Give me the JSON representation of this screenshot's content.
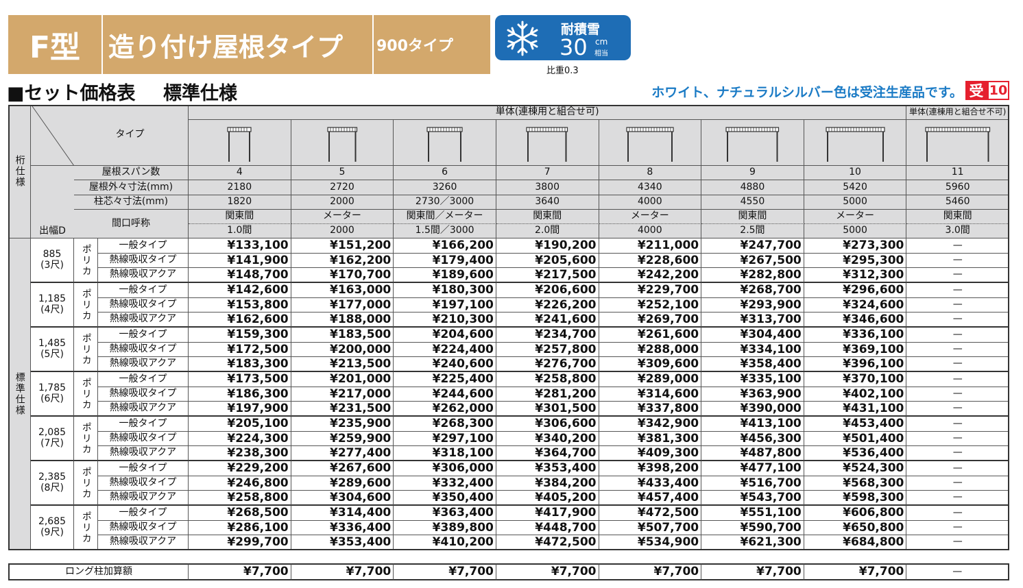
{
  "header": {
    "badge": "F型",
    "title": "造り付け屋根タイプ",
    "subtype": "900タイプ",
    "snow": {
      "label": "耐積雪",
      "value": "30",
      "unit": "cm",
      "unit_note": "相当",
      "note": "比重0.3"
    }
  },
  "section": {
    "title": "■セット価格表",
    "subtitle": "標準仕様",
    "notice": "ホワイト、ナチュラルシルバー色は受注生産品です。",
    "order_mark": "受",
    "order_days": "10"
  },
  "table": {
    "side_top": "桁仕様",
    "side_bottom": "標準仕様",
    "group_a": "単体(連棟用と組合せ可)",
    "group_b": "単体(連棟用と組合せ不可)",
    "type_label": "タイプ",
    "depth_label": "出幅D",
    "row_labels": [
      "屋根スパン数",
      "屋根外々寸法(mm)",
      "柱芯々寸法(mm)",
      "間口呼称"
    ],
    "columns": [
      {
        "span": "4",
        "outer": "2180",
        "pitch": "1820",
        "name1": "関東間",
        "name2": "1.0間"
      },
      {
        "span": "5",
        "outer": "2720",
        "pitch": "2000",
        "name1": "メーター",
        "name2": "2000"
      },
      {
        "span": "6",
        "outer": "3260",
        "pitch": "2730／3000",
        "name1": "関東間／メーター",
        "name2": "1.5間／3000"
      },
      {
        "span": "7",
        "outer": "3800",
        "pitch": "3640",
        "name1": "関東間",
        "name2": "2.0間"
      },
      {
        "span": "8",
        "outer": "4340",
        "pitch": "4000",
        "name1": "メーター",
        "name2": "4000"
      },
      {
        "span": "9",
        "outer": "4880",
        "pitch": "4550",
        "name1": "関東間",
        "name2": "2.5間"
      },
      {
        "span": "10",
        "outer": "5420",
        "pitch": "5000",
        "name1": "メーター",
        "name2": "5000"
      },
      {
        "span": "11",
        "outer": "5960",
        "pitch": "5460",
        "name1": "関東間",
        "name2": "3.0間"
      }
    ],
    "depths": [
      {
        "width": "885",
        "shaku": "(3尺)",
        "material": "ポリカ",
        "rows": [
          {
            "type": "一般タイプ",
            "prices": [
              "¥133,100",
              "¥151,200",
              "¥166,200",
              "¥190,200",
              "¥211,000",
              "¥247,700",
              "¥273,300",
              "—"
            ]
          },
          {
            "type": "熱線吸収タイプ",
            "prices": [
              "¥141,900",
              "¥162,200",
              "¥179,400",
              "¥205,600",
              "¥228,600",
              "¥267,500",
              "¥295,300",
              "—"
            ]
          },
          {
            "type": "熱線吸収アクア",
            "prices": [
              "¥148,700",
              "¥170,700",
              "¥189,600",
              "¥217,500",
              "¥242,200",
              "¥282,800",
              "¥312,300",
              "—"
            ]
          }
        ]
      },
      {
        "width": "1,185",
        "shaku": "(4尺)",
        "material": "ポリカ",
        "rows": [
          {
            "type": "一般タイプ",
            "prices": [
              "¥142,600",
              "¥163,000",
              "¥180,300",
              "¥206,600",
              "¥229,700",
              "¥268,700",
              "¥296,600",
              "—"
            ]
          },
          {
            "type": "熱線吸収タイプ",
            "prices": [
              "¥153,800",
              "¥177,000",
              "¥197,100",
              "¥226,200",
              "¥252,100",
              "¥293,900",
              "¥324,600",
              "—"
            ]
          },
          {
            "type": "熱線吸収アクア",
            "prices": [
              "¥162,600",
              "¥188,000",
              "¥210,300",
              "¥241,600",
              "¥269,700",
              "¥313,700",
              "¥346,600",
              "—"
            ]
          }
        ]
      },
      {
        "width": "1,485",
        "shaku": "(5尺)",
        "material": "ポリカ",
        "rows": [
          {
            "type": "一般タイプ",
            "prices": [
              "¥159,300",
              "¥183,500",
              "¥204,600",
              "¥234,700",
              "¥261,600",
              "¥304,400",
              "¥336,100",
              "—"
            ]
          },
          {
            "type": "熱線吸収タイプ",
            "prices": [
              "¥172,500",
              "¥200,000",
              "¥224,400",
              "¥257,800",
              "¥288,000",
              "¥334,100",
              "¥369,100",
              "—"
            ]
          },
          {
            "type": "熱線吸収アクア",
            "prices": [
              "¥183,300",
              "¥213,500",
              "¥240,600",
              "¥276,700",
              "¥309,600",
              "¥358,400",
              "¥396,100",
              "—"
            ]
          }
        ]
      },
      {
        "width": "1,785",
        "shaku": "(6尺)",
        "material": "ポリカ",
        "rows": [
          {
            "type": "一般タイプ",
            "prices": [
              "¥173,500",
              "¥201,000",
              "¥225,400",
              "¥258,800",
              "¥289,000",
              "¥335,100",
              "¥370,100",
              "—"
            ]
          },
          {
            "type": "熱線吸収タイプ",
            "prices": [
              "¥186,300",
              "¥217,000",
              "¥244,600",
              "¥281,200",
              "¥314,600",
              "¥363,900",
              "¥402,100",
              "—"
            ]
          },
          {
            "type": "熱線吸収アクア",
            "prices": [
              "¥197,900",
              "¥231,500",
              "¥262,000",
              "¥301,500",
              "¥337,800",
              "¥390,000",
              "¥431,100",
              "—"
            ]
          }
        ]
      },
      {
        "width": "2,085",
        "shaku": "(7尺)",
        "material": "ポリカ",
        "rows": [
          {
            "type": "一般タイプ",
            "prices": [
              "¥205,100",
              "¥235,900",
              "¥268,300",
              "¥306,600",
              "¥342,900",
              "¥413,100",
              "¥453,400",
              "—"
            ]
          },
          {
            "type": "熱線吸収タイプ",
            "prices": [
              "¥224,300",
              "¥259,900",
              "¥297,100",
              "¥340,200",
              "¥381,300",
              "¥456,300",
              "¥501,400",
              "—"
            ]
          },
          {
            "type": "熱線吸収アクア",
            "prices": [
              "¥238,300",
              "¥277,400",
              "¥318,100",
              "¥364,700",
              "¥409,300",
              "¥487,800",
              "¥536,400",
              "—"
            ]
          }
        ]
      },
      {
        "width": "2,385",
        "shaku": "(8尺)",
        "material": "ポリカ",
        "rows": [
          {
            "type": "一般タイプ",
            "prices": [
              "¥229,200",
              "¥267,600",
              "¥306,000",
              "¥353,400",
              "¥398,200",
              "¥477,100",
              "¥524,300",
              "—"
            ]
          },
          {
            "type": "熱線吸収タイプ",
            "prices": [
              "¥246,800",
              "¥289,600",
              "¥332,400",
              "¥384,200",
              "¥433,400",
              "¥516,700",
              "¥568,300",
              "—"
            ]
          },
          {
            "type": "熱線吸収アクア",
            "prices": [
              "¥258,800",
              "¥304,600",
              "¥350,400",
              "¥405,200",
              "¥457,400",
              "¥543,700",
              "¥598,300",
              "—"
            ]
          }
        ]
      },
      {
        "width": "2,685",
        "shaku": "(9尺)",
        "material": "ポリカ",
        "rows": [
          {
            "type": "一般タイプ",
            "prices": [
              "¥268,500",
              "¥314,400",
              "¥363,400",
              "¥417,900",
              "¥472,500",
              "¥551,100",
              "¥606,800",
              "—"
            ]
          },
          {
            "type": "熱線吸収タイプ",
            "prices": [
              "¥286,100",
              "¥336,400",
              "¥389,800",
              "¥448,700",
              "¥507,700",
              "¥590,700",
              "¥650,800",
              "—"
            ]
          },
          {
            "type": "熱線吸収アクア",
            "prices": [
              "¥299,700",
              "¥353,400",
              "¥410,200",
              "¥472,500",
              "¥534,900",
              "¥621,300",
              "¥684,800",
              "—"
            ]
          }
        ]
      }
    ],
    "long_pillar": {
      "label": "ロング柱加算額",
      "prices": [
        "¥7,700",
        "¥7,700",
        "¥7,700",
        "¥7,700",
        "¥7,700",
        "¥7,700",
        "¥7,700",
        "—"
      ]
    }
  }
}
